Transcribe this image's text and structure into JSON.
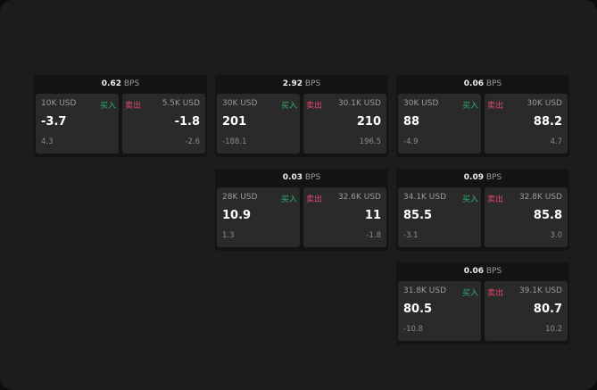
{
  "unit": "BPS",
  "buy_label": "买入",
  "sell_label": "卖出",
  "colors": {
    "buy": "#2fb36a",
    "sell": "#e04a6a"
  },
  "cards": [
    {
      "spread": "0.62",
      "buy": {
        "size": "10K USD",
        "price": "-3.7",
        "change": "4.3"
      },
      "sell": {
        "size": "5.5K USD",
        "price": "-1.8",
        "change": "-2.6"
      }
    },
    {
      "spread": "2.92",
      "buy": {
        "size": "30K USD",
        "price": "201",
        "change": "-188.1"
      },
      "sell": {
        "size": "30.1K USD",
        "price": "210",
        "change": "196.5"
      }
    },
    {
      "spread": "0.06",
      "buy": {
        "size": "30K USD",
        "price": "88",
        "change": "-4.9"
      },
      "sell": {
        "size": "30K USD",
        "price": "88.2",
        "change": "4.7"
      }
    },
    {
      "spread": "0.03",
      "buy": {
        "size": "28K USD",
        "price": "10.9",
        "change": "1.3"
      },
      "sell": {
        "size": "32.6K USD",
        "price": "11",
        "change": "-1.8"
      }
    },
    {
      "spread": "0.09",
      "buy": {
        "size": "34.1K USD",
        "price": "85.5",
        "change": "-3.1"
      },
      "sell": {
        "size": "32.8K USD",
        "price": "85.8",
        "change": "3.0"
      }
    },
    {
      "spread": "0.06",
      "buy": {
        "size": "31.8K USD",
        "price": "80.5",
        "change": "-10.8"
      },
      "sell": {
        "size": "39.1K USD",
        "price": "80.7",
        "change": "10.2"
      }
    }
  ]
}
